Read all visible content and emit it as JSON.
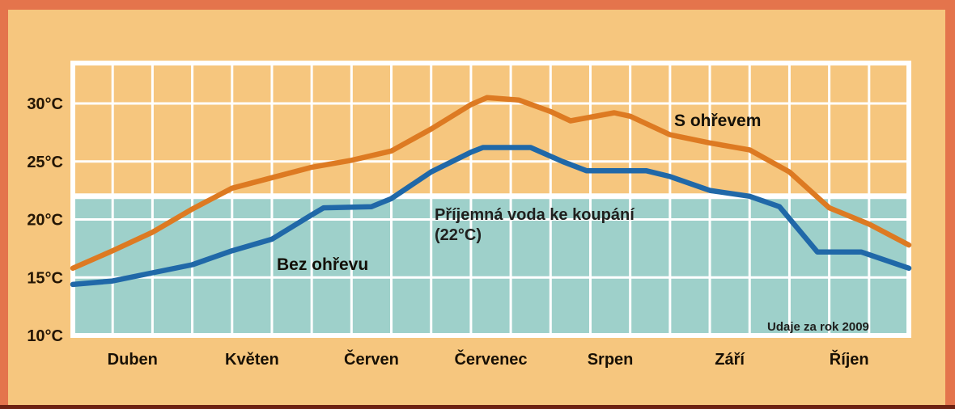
{
  "frame": {
    "background_color": "#f6c67e",
    "border_color": "#e4744c",
    "bottom_strip_color": "#6e2212"
  },
  "chart_data": {
    "type": "line",
    "title": "",
    "grid": true,
    "grid_color": "#ffffff",
    "y_axis": {
      "unit": "°C",
      "tick_labels": [
        "30°C",
        "25°C",
        "20°C",
        "15°C",
        "10°C"
      ],
      "tick_values": [
        30,
        25,
        20,
        15,
        10
      ],
      "range_bottom": 10,
      "range_top": 33.5
    },
    "x_axis": {
      "month_labels": [
        "Duben",
        "Květen",
        "Červen",
        "Červenec",
        "Srpen",
        "Září",
        "Říjen"
      ],
      "cells_per_month": 3,
      "x_unit": "thirds of a month measured from the start of Duben"
    },
    "series": [
      {
        "name": "S ohřevem",
        "color": "#dd7a22",
        "points_cell_temp": [
          [
            0,
            15.8
          ],
          [
            1,
            17.3
          ],
          [
            2,
            18.9
          ],
          [
            3,
            20.9
          ],
          [
            4,
            22.7
          ],
          [
            5,
            23.6
          ],
          [
            6,
            24.5
          ],
          [
            7,
            25.1
          ],
          [
            8,
            25.9
          ],
          [
            9,
            27.8
          ],
          [
            10,
            29.9
          ],
          [
            10.4,
            30.5
          ],
          [
            11.2,
            30.3
          ],
          [
            12,
            29.3
          ],
          [
            12.5,
            28.5
          ],
          [
            13.6,
            29.2
          ],
          [
            14,
            28.9
          ],
          [
            15,
            27.3
          ],
          [
            16,
            26.6
          ],
          [
            17,
            26.0
          ],
          [
            18,
            24.1
          ],
          [
            19,
            21.0
          ],
          [
            20,
            19.6
          ],
          [
            21,
            17.8
          ]
        ]
      },
      {
        "name": "Bez ohřevu",
        "color": "#2068a8",
        "points_cell_temp": [
          [
            0,
            14.4
          ],
          [
            1,
            14.7
          ],
          [
            2,
            15.4
          ],
          [
            3,
            16.1
          ],
          [
            4,
            17.3
          ],
          [
            5,
            18.3
          ],
          [
            6,
            20.4
          ],
          [
            6.3,
            21.0
          ],
          [
            7.5,
            21.1
          ],
          [
            8,
            21.8
          ],
          [
            9,
            24.1
          ],
          [
            10,
            25.8
          ],
          [
            10.3,
            26.2
          ],
          [
            11.5,
            26.2
          ],
          [
            12.3,
            25.0
          ],
          [
            12.9,
            24.2
          ],
          [
            14.4,
            24.2
          ],
          [
            15,
            23.7
          ],
          [
            16,
            22.5
          ],
          [
            17,
            22.0
          ],
          [
            17.75,
            21.1
          ],
          [
            18.7,
            17.2
          ],
          [
            19.8,
            17.2
          ],
          [
            21,
            15.8
          ]
        ]
      }
    ],
    "comfort_band": {
      "label": "Příjemná voda ke koupání",
      "label2": "(22°C)",
      "threshold_c": 22,
      "fill_color": "#9ed0ca"
    },
    "source_note": "Udaje za rok 2009",
    "legend_position": "inline-annotations"
  }
}
